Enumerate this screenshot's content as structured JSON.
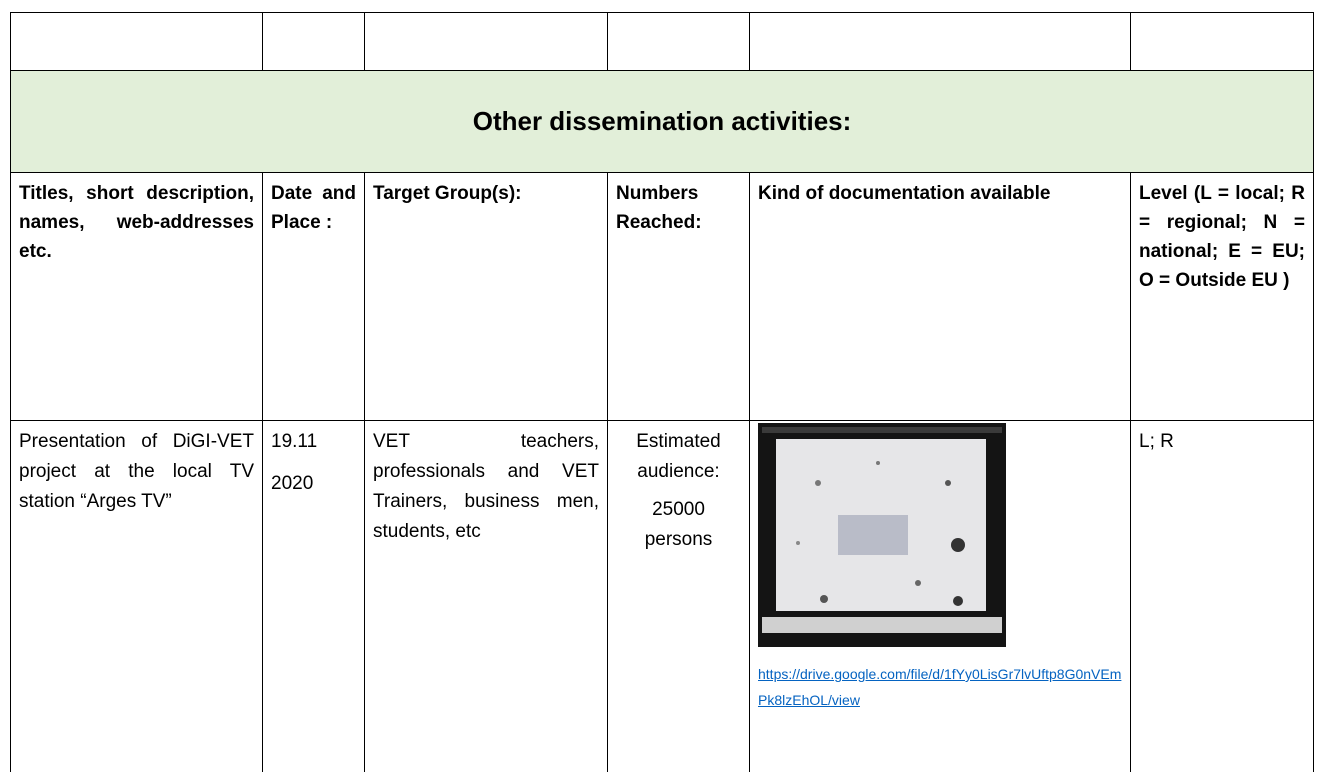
{
  "table": {
    "section_title": "Other dissemination activities:",
    "headers": [
      "Titles, short description, names, web-addresses etc.",
      "Date and Place :",
      "Target Group(s):",
      "Numbers Reached:",
      "Kind of documentation available",
      "Level (L = local; R = regional; N = national; E = EU; O = Outside EU )"
    ],
    "rows": [
      {
        "title": "Presentation of DiGI-VET project at the local TV station “Arges TV”",
        "date": [
          "19.11",
          "2020"
        ],
        "target_groups": "VET teachers, professionals and VET Trainers, business men, students, etc",
        "numbers_reached": [
          "Estimated audience:",
          "25000 persons"
        ],
        "documentation_link": "https://drive.google.com/file/d/1fYy0LisGr7lvUftp8G0nVEmPk8lzEhOL/view",
        "level": "L; R"
      }
    ]
  }
}
